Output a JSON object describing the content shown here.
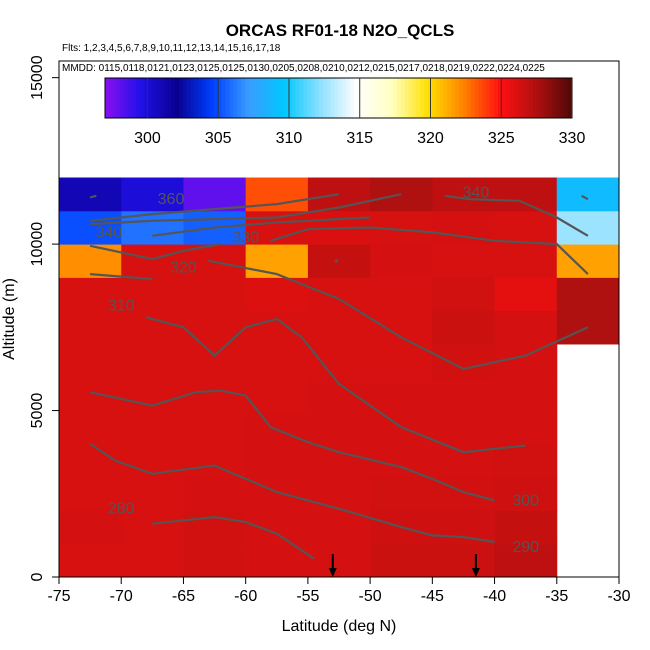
{
  "chart_data": {
    "type": "heatmap",
    "title": "ORCAS RF01-18 N2O_QCLS",
    "flights_text": "Flts: 1,2,3,4,5,6,7,8,9,10,11,12,13,14,15,16,17,18",
    "mmdd_text": "MMDD: 0115,0118,0121,0123,0125,0125,0130,0205,0208,0210,0212,0215,0217,0218,0219,0222,0224,0225",
    "xlabel": "Latitude (deg N)",
    "ylabel": "Altitude (m)",
    "xlim": [
      -75,
      -30
    ],
    "ylim": [
      0,
      15500
    ],
    "xticks": [
      -75,
      -70,
      -65,
      -60,
      -55,
      -50,
      -45,
      -40,
      -35,
      -30
    ],
    "yticks": [
      0,
      5000,
      10000,
      15000
    ],
    "colorbar": {
      "range": [
        297,
        330
      ],
      "ticks": [
        300,
        305,
        310,
        315,
        320,
        325,
        330
      ],
      "colors": [
        "#8a10f0",
        "#2010e8",
        "#0a0090",
        "#0040ff",
        "#3a9cff",
        "#00c8ff",
        "#90e0ff",
        "#ffffff",
        "#ffffc0",
        "#ffe000",
        "#ff8000",
        "#ff1010",
        "#b01010",
        "#500808"
      ]
    },
    "lat_edges": [
      -75,
      -70,
      -65,
      -60,
      -55,
      -50,
      -45,
      -40,
      -35
    ],
    "alt_edges": [
      0,
      1000,
      2000,
      3000,
      4000,
      5000,
      6000,
      7000,
      8000,
      9000,
      10000,
      11000,
      12000
    ],
    "grid_values": [
      [
        326.2,
        326.2,
        326.4,
        326.3,
        326.3,
        326.6,
        326.6,
        327.0
      ],
      [
        326.3,
        326.2,
        326.4,
        326.3,
        326.3,
        326.5,
        326.5,
        326.8
      ],
      [
        326.2,
        326.2,
        326.3,
        326.3,
        326.3,
        326.4,
        326.4,
        326.5
      ],
      [
        326.2,
        326.2,
        326.2,
        326.3,
        326.3,
        326.3,
        326.3,
        326.4
      ],
      [
        326.2,
        326.2,
        326.2,
        326.3,
        326.3,
        326.3,
        326.3,
        326.3
      ],
      [
        326.2,
        326.2,
        326.2,
        326.2,
        326.3,
        326.3,
        326.3,
        326.3
      ],
      [
        326.2,
        326.2,
        326.2,
        326.2,
        326.2,
        326.2,
        326.4,
        326.3
      ],
      [
        326.2,
        326.2,
        326.2,
        326.2,
        326.2,
        326.2,
        326.6,
        326.3
      ],
      [
        326.2,
        326.2,
        326.2,
        326.0,
        326.2,
        326.2,
        326.4,
        325.8
      ],
      [
        322.0,
        326.2,
        326.2,
        321.5,
        326.8,
        326.3,
        326.2,
        326.2
      ],
      [
        305.0,
        306.0,
        305.5,
        326.2,
        326.1,
        326.2,
        326.3,
        326.2
      ],
      [
        301.0,
        300.0,
        298.0,
        323.5,
        327.0,
        327.5,
        327.0,
        327.0
      ]
    ],
    "extra_cells": [
      {
        "lat": [
          -35,
          -30
        ],
        "alt": [
          7000,
          9000
        ],
        "value": 327.5
      },
      {
        "lat": [
          -35,
          -30
        ],
        "alt": [
          9000,
          10000
        ],
        "value": 321.5
      },
      {
        "lat": [
          -35,
          -30
        ],
        "alt": [
          10000,
          11000
        ],
        "value": 312.5
      },
      {
        "lat": [
          -35,
          -30
        ],
        "alt": [
          11000,
          12000
        ],
        "value": 309.0
      }
    ],
    "contours": [
      {
        "label": "360",
        "points": [
          [
            -72.5,
            11400
          ],
          [
            -72,
            11450
          ]
        ],
        "extra": [
          [
            -72.5,
            10700
          ],
          [
            -67.5,
            10900
          ],
          [
            -62.5,
            11050
          ],
          [
            -57.5,
            11200
          ],
          [
            -52.5,
            11500
          ]
        ]
      },
      {
        "label": "360b",
        "points": [
          [
            -72.5,
            10700
          ],
          [
            -67.5,
            10900
          ],
          [
            -62.5,
            11050
          ],
          [
            -57.5,
            11200
          ],
          [
            -52.5,
            11500
          ]
        ]
      },
      {
        "label": "350",
        "points": [
          [
            -72.5,
            10600
          ],
          [
            -67.5,
            10700
          ],
          [
            -62.5,
            10750
          ],
          [
            -57.5,
            10800
          ],
          [
            -52.5,
            11100
          ],
          [
            -47.5,
            11500
          ]
        ]
      },
      {
        "label": "340",
        "points": [
          [
            -67.5,
            10250
          ],
          [
            -62.5,
            10500
          ],
          [
            -57.5,
            10650
          ],
          [
            -52.5,
            10750
          ],
          [
            -50,
            10800
          ]
        ]
      },
      {
        "label": "340r",
        "points": [
          [
            -44,
            11450
          ],
          [
            -42,
            11350
          ],
          [
            -38,
            11300
          ],
          [
            -35,
            10800
          ],
          [
            -32.5,
            10250
          ]
        ]
      },
      {
        "label": "340rr",
        "points": [
          [
            -33,
            11450
          ],
          [
            -32.5,
            11350
          ]
        ]
      },
      {
        "label": "330",
        "points": [
          [
            -72.5,
            9950
          ],
          [
            -67.5,
            9550
          ],
          [
            -65,
            9800
          ],
          [
            -62,
            10000
          ]
        ]
      },
      {
        "label": "330r",
        "points": [
          [
            -58,
            10100
          ],
          [
            -55,
            10450
          ],
          [
            -50,
            10500
          ],
          [
            -45,
            10350
          ],
          [
            -40,
            10100
          ],
          [
            -35,
            10000
          ],
          [
            -32.5,
            9100
          ]
        ]
      },
      {
        "label": "320",
        "points": [
          [
            -72.5,
            9100
          ],
          [
            -67.5,
            8950
          ]
        ]
      },
      {
        "label": "320r",
        "points": [
          [
            -63,
            9500
          ],
          [
            -57.5,
            9100
          ],
          [
            -52.5,
            8350
          ],
          [
            -47.5,
            7200
          ],
          [
            -42.5,
            6250
          ],
          [
            -37.5,
            6650
          ],
          [
            -32.5,
            7500
          ]
        ]
      },
      {
        "label": "310",
        "points": [
          [
            -68,
            7800
          ],
          [
            -65,
            7500
          ],
          [
            -62.5,
            6650
          ],
          [
            -60,
            7500
          ],
          [
            -57.5,
            7750
          ],
          [
            -55.5,
            7200
          ],
          [
            -52.5,
            5800
          ],
          [
            -47.5,
            4500
          ],
          [
            -42.5,
            3750
          ],
          [
            -37.5,
            3950
          ]
        ]
      },
      {
        "label": "300",
        "points": [
          [
            -72.5,
            5550
          ],
          [
            -67.5,
            5150
          ],
          [
            -64,
            5550
          ],
          [
            -62,
            5600
          ],
          [
            -60,
            5450
          ],
          [
            -58,
            4500
          ],
          [
            -55,
            4050
          ],
          [
            -52.5,
            3750
          ],
          [
            -47.5,
            3300
          ],
          [
            -45,
            2950
          ],
          [
            -42.5,
            2550
          ],
          [
            -40,
            2300
          ]
        ]
      },
      {
        "label": "290",
        "points": [
          [
            -72.5,
            4000
          ],
          [
            -70.5,
            3500
          ],
          [
            -67.5,
            3100
          ],
          [
            -62.5,
            3350
          ],
          [
            -57.5,
            2550
          ],
          [
            -52.5,
            2050
          ],
          [
            -47.5,
            1500
          ],
          [
            -45,
            1250
          ],
          [
            -42.5,
            1200
          ],
          [
            -40,
            1050
          ]
        ]
      },
      {
        "label": "280",
        "points": [
          [
            -67.5,
            1600
          ],
          [
            -62.5,
            1800
          ],
          [
            -60,
            1650
          ],
          [
            -57.5,
            1300
          ],
          [
            -54.5,
            550
          ]
        ]
      }
    ],
    "contour_labels": [
      {
        "text": "360",
        "lat": -66,
        "alt": 11200
      },
      {
        "text": "340",
        "lat": -71,
        "alt": 10200
      },
      {
        "text": "330",
        "lat": -60,
        "alt": 10050
      },
      {
        "text": "320",
        "lat": -65,
        "alt": 9150
      },
      {
        "text": "310",
        "lat": -70,
        "alt": 8000
      },
      {
        "text": "340",
        "lat": -41.5,
        "alt": 11400
      },
      {
        "text": "300",
        "lat": -37.5,
        "alt": 2150
      },
      {
        "text": "290",
        "lat": -37.5,
        "alt": 750
      },
      {
        "text": "280",
        "lat": -70,
        "alt": 1900
      }
    ],
    "arrows": [
      -53,
      -41.5
    ],
    "points": [
      {
        "lat": -52.7,
        "alt": 9500
      }
    ]
  }
}
